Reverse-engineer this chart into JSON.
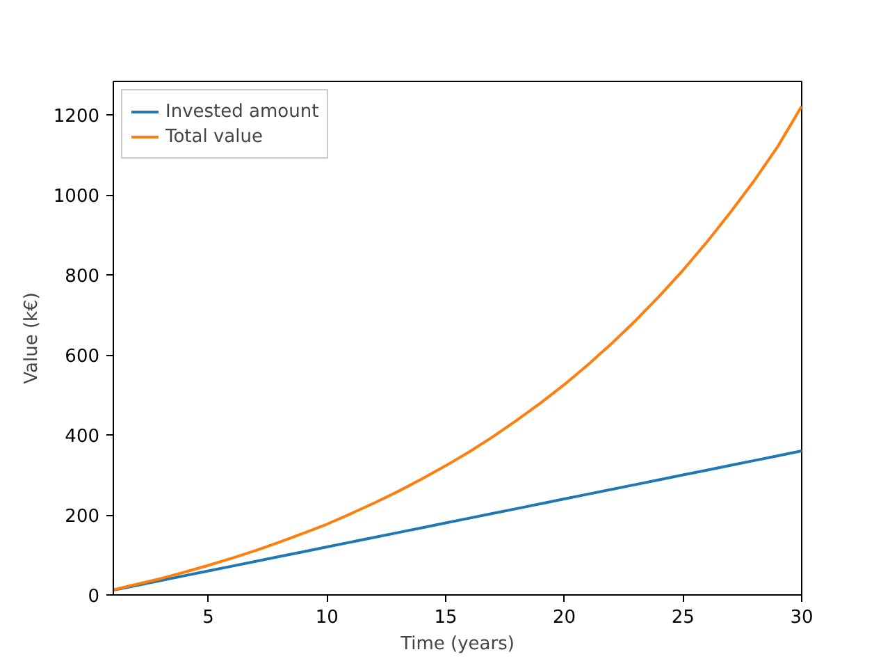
{
  "chart_data": {
    "type": "line",
    "xlabel": "Time (years)",
    "ylabel": "Value (k€)",
    "x": [
      1,
      2,
      3,
      4,
      5,
      6,
      7,
      8,
      9,
      10,
      11,
      12,
      13,
      14,
      15,
      16,
      17,
      18,
      19,
      20,
      21,
      22,
      23,
      24,
      25,
      26,
      27,
      28,
      29,
      30
    ],
    "series": [
      {
        "name": "Invested amount",
        "color": "#1f77b4",
        "values": [
          12,
          24,
          36,
          48,
          60,
          72,
          84,
          96,
          108,
          120,
          132,
          144,
          156,
          168,
          180,
          192,
          204,
          216,
          228,
          240,
          252,
          264,
          276,
          288,
          300,
          312,
          324,
          336,
          348,
          360
        ]
      },
      {
        "name": "Total value",
        "color": "#ff7f0e",
        "values": [
          13,
          27,
          41,
          57,
          74,
          92,
          111,
          132,
          154,
          177,
          203,
          230,
          259,
          290,
          323,
          358,
          396,
          437,
          480,
          526,
          576,
          629,
          686,
          747,
          812,
          882,
          957,
          1036,
          1122,
          1222
        ]
      }
    ],
    "xlim": [
      1,
      30
    ],
    "xticks": [
      5,
      10,
      15,
      20,
      25,
      30
    ],
    "ylim": [
      0,
      1284
    ],
    "yticks": [
      0,
      200,
      400,
      600,
      800,
      1000,
      1200
    ],
    "grid": false,
    "legend": "top left",
    "marker": "none",
    "line_style": "solid"
  }
}
